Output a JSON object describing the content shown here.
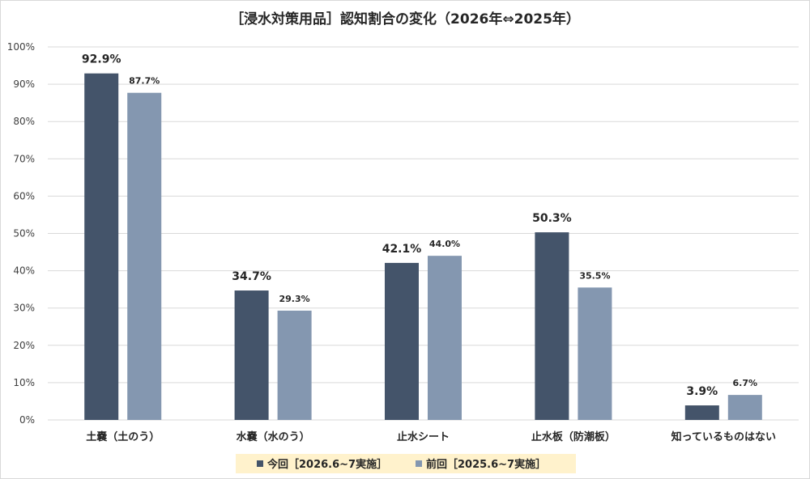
{
  "chart_data": {
    "type": "bar",
    "title": "［浸水対策用品］認知割合の変化（2026年⇔2025年）",
    "categories": [
      "土嚢（土のう）",
      "水嚢（水のう）",
      "止水シート",
      "止水板（防潮板）",
      "知っているものはない"
    ],
    "series": [
      {
        "name": "今回［2026.6~7実施］",
        "values": [
          92.9,
          34.7,
          42.1,
          50.3,
          3.9
        ],
        "labels": [
          "92.9%",
          "34.7%",
          "42.1%",
          "50.3%",
          "3.9%"
        ],
        "color": "#44546a"
      },
      {
        "name": "前回［2025.6~7実施］",
        "values": [
          87.7,
          29.3,
          44.0,
          35.5,
          6.7
        ],
        "labels": [
          "87.7%",
          "29.3%",
          "44.0%",
          "35.5%",
          "6.7%"
        ],
        "color": "#8497b0"
      }
    ],
    "ylim": [
      0,
      100
    ],
    "yticks": [
      "0%",
      "10%",
      "20%",
      "30%",
      "40%",
      "50%",
      "60%",
      "70%",
      "80%",
      "90%",
      "100%"
    ],
    "xlabel": "",
    "ylabel": "",
    "grid": true,
    "legend_position": "bottom-center",
    "legend_background": "#fff2cc",
    "gridline_color": "#d9d9d9"
  }
}
